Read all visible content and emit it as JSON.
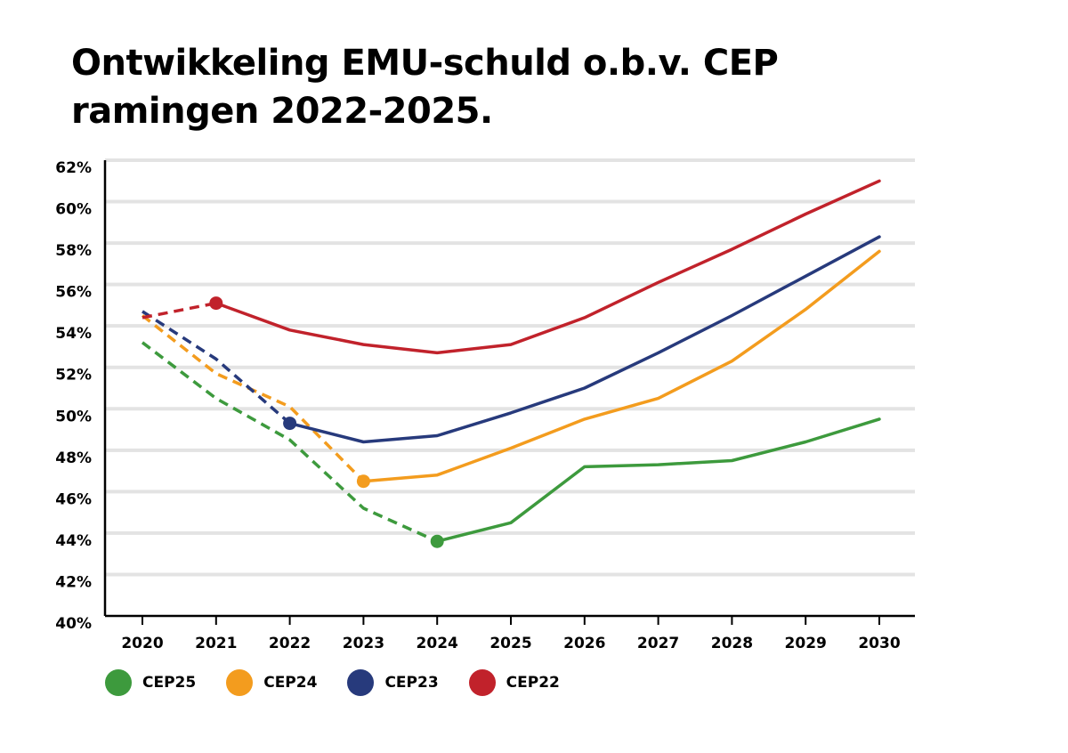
{
  "title_line1": "Ontwikkeling EMU-schuld o.b.v. CEP",
  "title_line2": "ramingen 2022-2025.",
  "chart_data": {
    "type": "line",
    "title": "Ontwikkeling EMU-schuld o.b.v. CEP ramingen 2022-2025.",
    "xlabel": "",
    "ylabel": "",
    "categories": [
      "2020",
      "2021",
      "2022",
      "2023",
      "2024",
      "2025",
      "2026",
      "2027",
      "2028",
      "2029",
      "2030"
    ],
    "y_ticks": [
      "40%",
      "42%",
      "44%",
      "46%",
      "48%",
      "50%",
      "52%",
      "54%",
      "56%",
      "58%",
      "60%",
      "62%"
    ],
    "ylim": [
      40,
      62
    ],
    "grid": "horizontal",
    "legend_position": "bottom-left",
    "series": [
      {
        "name": "CEP25",
        "color": "#3d9a3d",
        "dashed": [
          [
            2020,
            53.2
          ],
          [
            2021,
            50.5
          ],
          [
            2022,
            48.5
          ],
          [
            2023,
            45.2
          ],
          [
            2024,
            43.6
          ]
        ],
        "solid": [
          [
            2024,
            43.6
          ],
          [
            2025,
            44.5
          ],
          [
            2026,
            47.2
          ],
          [
            2027,
            47.3
          ],
          [
            2028,
            47.5
          ],
          [
            2029,
            48.4
          ],
          [
            2030,
            49.5
          ]
        ],
        "marker_year": 2024
      },
      {
        "name": "CEP24",
        "color": "#f39c1e",
        "dashed": [
          [
            2020,
            54.5
          ],
          [
            2021,
            51.7
          ],
          [
            2022,
            50.1
          ],
          [
            2023,
            46.5
          ]
        ],
        "solid": [
          [
            2023,
            46.5
          ],
          [
            2024,
            46.8
          ],
          [
            2025,
            48.1
          ],
          [
            2026,
            49.5
          ],
          [
            2027,
            50.5
          ],
          [
            2028,
            52.3
          ],
          [
            2029,
            54.8
          ],
          [
            2030,
            57.6
          ]
        ],
        "marker_year": 2023
      },
      {
        "name": "CEP23",
        "color": "#273a7c",
        "dashed": [
          [
            2020,
            54.7
          ],
          [
            2021,
            52.4
          ],
          [
            2022,
            49.3
          ]
        ],
        "solid": [
          [
            2022,
            49.3
          ],
          [
            2023,
            48.4
          ],
          [
            2024,
            48.7
          ],
          [
            2025,
            49.8
          ],
          [
            2026,
            51.0
          ],
          [
            2027,
            52.7
          ],
          [
            2028,
            54.5
          ],
          [
            2029,
            56.4
          ],
          [
            2030,
            58.3
          ]
        ],
        "marker_year": 2022
      },
      {
        "name": "CEP22",
        "color": "#c1222b",
        "dashed": [
          [
            2020,
            54.4
          ],
          [
            2021,
            55.1
          ]
        ],
        "solid": [
          [
            2021,
            55.1
          ],
          [
            2022,
            53.8
          ],
          [
            2023,
            53.1
          ],
          [
            2024,
            52.7
          ],
          [
            2025,
            53.1
          ],
          [
            2026,
            54.4
          ],
          [
            2027,
            56.1
          ],
          [
            2028,
            57.7
          ],
          [
            2029,
            59.4
          ],
          [
            2030,
            61.0
          ]
        ],
        "marker_year": 2021
      }
    ]
  }
}
